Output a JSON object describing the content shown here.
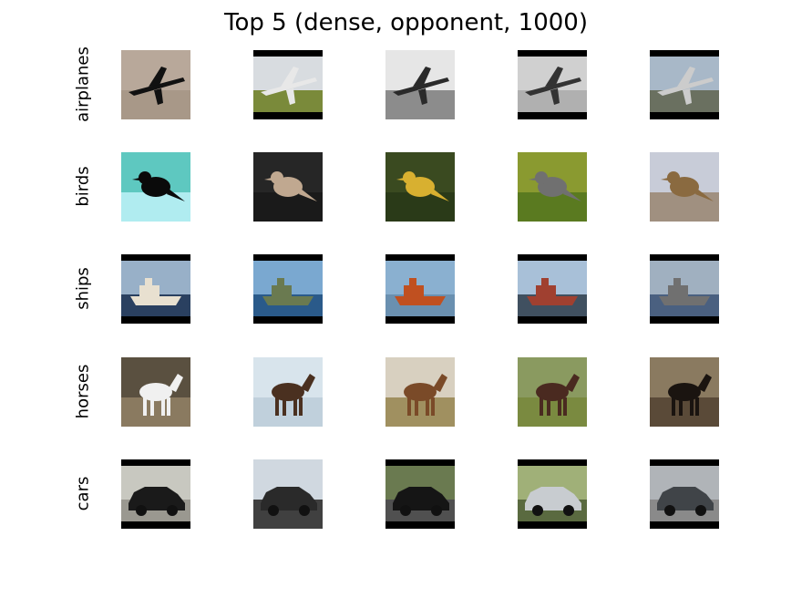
{
  "title": "Top 5 (dense, opponent, 1000)",
  "rows": [
    {
      "label": "airplanes",
      "images": [
        {
          "icon": "bomber-silhouette-icon",
          "sky": "#b8a89a",
          "ground": "#a89888",
          "fg": "#111111",
          "bars": false
        },
        {
          "icon": "small-planes-on-grass-icon",
          "sky": "#d8dce0",
          "ground": "#7a8a3a",
          "fg": "#e8e8e8",
          "bars": true
        },
        {
          "icon": "jet-fighter-icon",
          "sky": "#e6e6e6",
          "ground": "#8c8c8c",
          "fg": "#2a2a2a",
          "bars": false
        },
        {
          "icon": "biplane-icon",
          "sky": "#d0d0d0",
          "ground": "#b0b0b0",
          "fg": "#333333",
          "bars": true
        },
        {
          "icon": "jet-on-pylon-icon",
          "sky": "#a8b8c8",
          "ground": "#6a7060",
          "fg": "#cccccc",
          "bars": true
        }
      ]
    },
    {
      "label": "birds",
      "images": [
        {
          "icon": "bird-silhouette-icon",
          "sky": "#5ec8c0",
          "ground": "#b0ecf0",
          "fg": "#0a0a0a",
          "bars": false
        },
        {
          "icon": "owl-icon",
          "sky": "#262626",
          "ground": "#1a1a1a",
          "fg": "#c0a890",
          "bars": false
        },
        {
          "icon": "yellow-bird-icon",
          "sky": "#3a4a20",
          "ground": "#2a3a18",
          "fg": "#d8b030",
          "bars": false
        },
        {
          "icon": "mockingbird-icon",
          "sky": "#8a9a30",
          "ground": "#5a7a20",
          "fg": "#707070",
          "bars": false
        },
        {
          "icon": "meadowlark-icon",
          "sky": "#c8ccd8",
          "ground": "#a09080",
          "fg": "#8a6a40",
          "bars": false
        }
      ]
    },
    {
      "label": "ships",
      "images": [
        {
          "icon": "cargo-ship-icon",
          "sky": "#98b0c8",
          "ground": "#2a4060",
          "fg": "#e8e0d0",
          "bars": true
        },
        {
          "icon": "distant-ship-icon",
          "sky": "#7aa8d0",
          "ground": "#2a5a8a",
          "fg": "#6a7a50",
          "bars": true
        },
        {
          "icon": "tugboat-icon",
          "sky": "#8ab0d0",
          "ground": "#6a90b0",
          "fg": "#c05020",
          "bars": true
        },
        {
          "icon": "container-ship-icon",
          "sky": "#a8c0d8",
          "ground": "#405060",
          "fg": "#a04030",
          "bars": true
        },
        {
          "icon": "barge-icon",
          "sky": "#a0b0c0",
          "ground": "#4a6080",
          "fg": "#707070",
          "bars": true
        }
      ]
    },
    {
      "label": "horses",
      "images": [
        {
          "icon": "paint-horse-icon",
          "sky": "#5a5040",
          "ground": "#8a7a60",
          "fg": "#f0f0f0",
          "bars": false
        },
        {
          "icon": "grazing-horse-snow-icon",
          "sky": "#d8e4ec",
          "ground": "#c0d0dc",
          "fg": "#4a3020",
          "bars": false
        },
        {
          "icon": "brown-horse-icon",
          "sky": "#d8d0c0",
          "ground": "#a09060",
          "fg": "#7a4a28",
          "bars": false
        },
        {
          "icon": "pony-icon",
          "sky": "#8a9a60",
          "ground": "#7a8a40",
          "fg": "#4a2a20",
          "bars": false
        },
        {
          "icon": "carriage-horse-icon",
          "sky": "#8a7a60",
          "ground": "#5a4a38",
          "fg": "#1a1410",
          "bars": false
        }
      ]
    },
    {
      "label": "cars",
      "images": [
        {
          "icon": "roadster-icon",
          "sky": "#c8c8c0",
          "ground": "#9a9890",
          "fg": "#1a1a1a",
          "bars": true
        },
        {
          "icon": "sedan-front-icon",
          "sky": "#d0d8e0",
          "ground": "#404040",
          "fg": "#2a2a2a",
          "bars": false
        },
        {
          "icon": "bmw-front-icon",
          "sky": "#6a7a50",
          "ground": "#505050",
          "fg": "#151515",
          "bars": true
        },
        {
          "icon": "silver-sedan-icon",
          "sky": "#a0b078",
          "ground": "#5a6a40",
          "fg": "#c8ccd0",
          "bars": true
        },
        {
          "icon": "hatchback-icon",
          "sky": "#b0b4b8",
          "ground": "#8a8a8a",
          "fg": "#404448",
          "bars": true
        }
      ]
    }
  ]
}
